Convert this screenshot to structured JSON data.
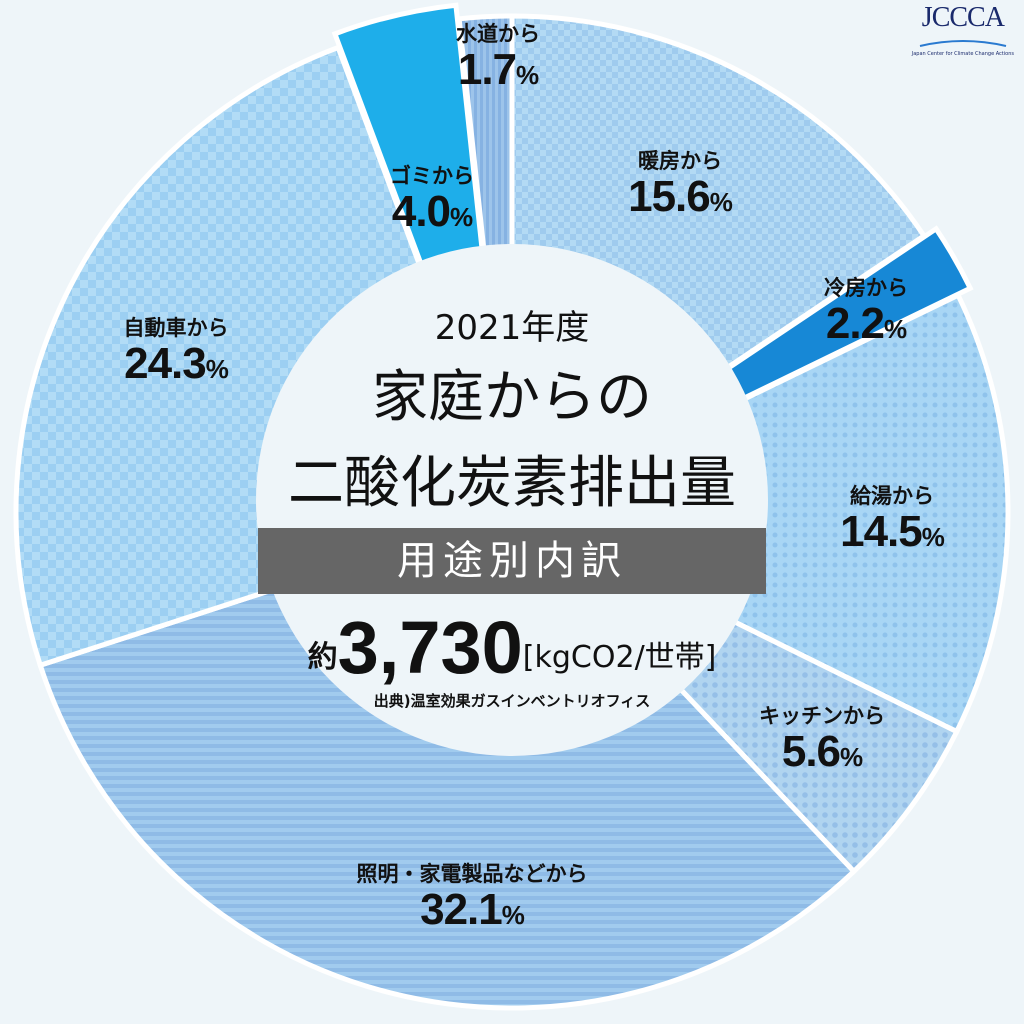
{
  "chart_data": {
    "type": "pie",
    "donut": true,
    "start": "top",
    "direction": "clockwise",
    "unit": "%",
    "slices": [
      {
        "label": "暖房から",
        "value": 15.6,
        "color": "#a9d3f1",
        "exploded": false
      },
      {
        "label": "冷房から",
        "value": 2.2,
        "color": "#1788d6",
        "exploded": true
      },
      {
        "label": "給湯から",
        "value": 14.5,
        "color": "#a4d6f5",
        "exploded": false
      },
      {
        "label": "キッチンから",
        "value": 5.6,
        "color": "#aed0ef",
        "exploded": false
      },
      {
        "label": "照明・家電製品などから",
        "value": 32.1,
        "color": "#98c4ec",
        "exploded": false
      },
      {
        "label": "自動車から",
        "value": 24.3,
        "color": "#a8d6f5",
        "exploded": false
      },
      {
        "label": "ゴミから",
        "value": 4.0,
        "color": "#1eaeea",
        "exploded": true
      },
      {
        "label": "水道から",
        "value": 1.7,
        "color": "#93bde8",
        "exploded": false
      }
    ]
  },
  "center": {
    "year": "2021年度",
    "title_line1": "家庭からの",
    "title_line2": "二酸化炭素排出量",
    "band": "用途別内訳",
    "total_prefix": "約",
    "total_value": "3,730",
    "total_unit": "[kgCO2/世帯]",
    "source": "出典)温室効果ガスインベントリオフィス"
  },
  "logo": {
    "text": "JCCCA",
    "subtitle": "Japan Center for Climate Change Actions"
  }
}
